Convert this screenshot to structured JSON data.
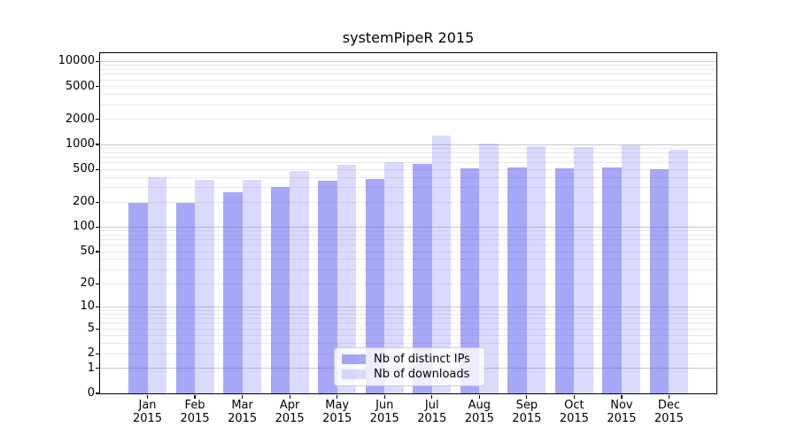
{
  "chart_data": {
    "type": "bar",
    "title": "systemPipeR 2015",
    "xlabel": "",
    "ylabel": "",
    "year": "2015",
    "categories": [
      "Jan",
      "Feb",
      "Mar",
      "Apr",
      "May",
      "Jun",
      "Jul",
      "Aug",
      "Sep",
      "Oct",
      "Nov",
      "Dec"
    ],
    "series": [
      {
        "name": "Nb of distinct IPs",
        "color": "rgba(80,80,240,0.5)",
        "approx_hex": "#a7a7f7",
        "values": [
          197,
          199,
          264,
          310,
          366,
          384,
          588,
          517,
          525,
          517,
          530,
          503
        ]
      },
      {
        "name": "Nb of downloads",
        "color": "rgba(80,80,240,0.21)",
        "approx_hex": "#dcdcfb",
        "values": [
          404,
          372,
          377,
          483,
          569,
          618,
          1275,
          1037,
          956,
          933,
          972,
          860
        ]
      }
    ],
    "y_scale": "log1p",
    "y_ticks": [
      0,
      1,
      2,
      5,
      10,
      20,
      50,
      100,
      200,
      500,
      1000,
      2000,
      5000,
      10000
    ],
    "ylim": [
      0,
      12600
    ],
    "grid": true,
    "grid_major_color": "#c8c8c8",
    "grid_minor_color": "#e9e9e9",
    "legend_position": "lower center",
    "background": "#ffffff"
  }
}
